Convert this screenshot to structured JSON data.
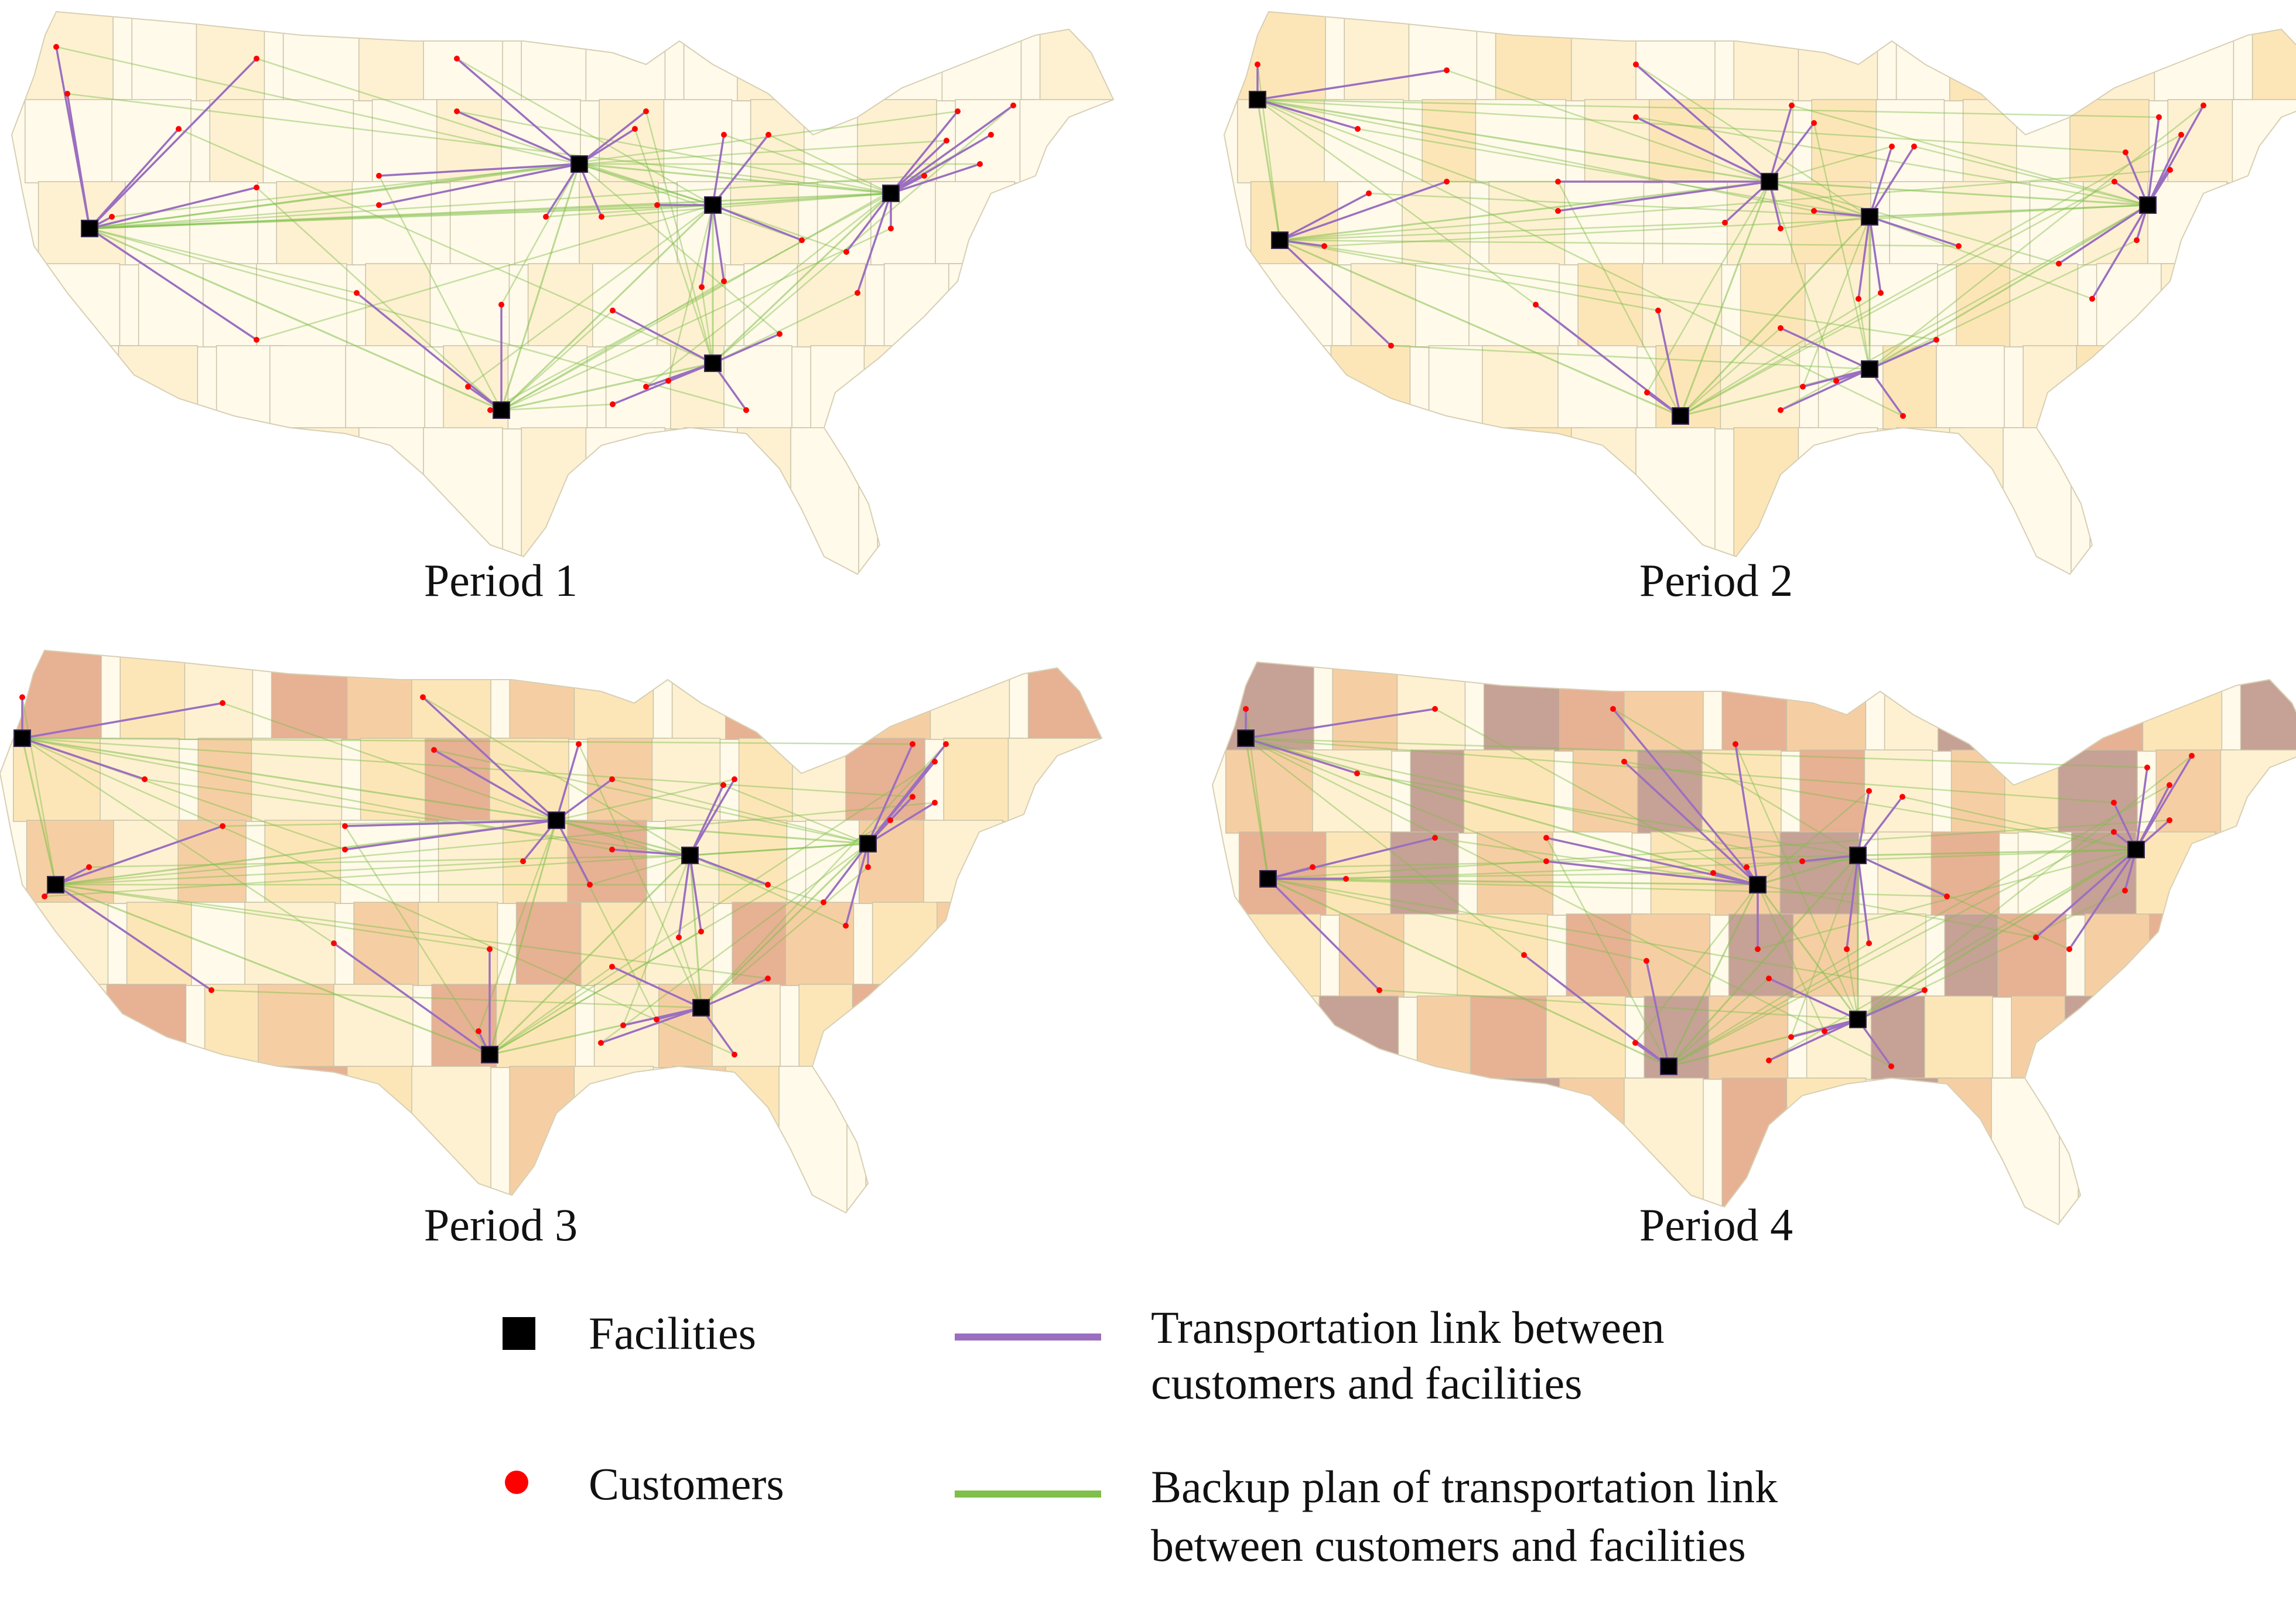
{
  "colors": {
    "transport_link": "#9b6fc0",
    "backup_link": "#7fbf4a",
    "facility": "#000000",
    "customer": "#ff0000",
    "state_border": "#c9c2a8",
    "palette": [
      "#fffaea",
      "#fdf1d2",
      "#fce6b8",
      "#f5cfa3",
      "#e7b194",
      "#c6a195"
    ]
  },
  "panels": [
    {
      "label": "Period 1",
      "state_shades": [
        1,
        0,
        1,
        0,
        1,
        0,
        0,
        0,
        0,
        1,
        0,
        0,
        0,
        1,
        0,
        0,
        1,
        0,
        0,
        1,
        0,
        1,
        0,
        1,
        0,
        1,
        0,
        0,
        1,
        0,
        0,
        1,
        0,
        0,
        0,
        1,
        0,
        1,
        0,
        0,
        0,
        1,
        0,
        0,
        0,
        0,
        1,
        0
      ],
      "facilities": [
        [
          0.07,
          0.38
        ],
        [
          0.51,
          0.27
        ],
        [
          0.63,
          0.34
        ],
        [
          0.79,
          0.32
        ],
        [
          0.63,
          0.61
        ],
        [
          0.44,
          0.69
        ]
      ],
      "assignments": [
        [
          [
            0.04,
            0.07
          ],
          [
            0.22,
            0.09
          ],
          [
            0.05,
            0.15
          ],
          [
            0.15,
            0.21
          ],
          [
            0.22,
            0.31
          ],
          [
            0.09,
            0.36
          ],
          [
            0.22,
            0.57
          ]
        ],
        [
          [
            0.4,
            0.09
          ],
          [
            0.4,
            0.18
          ],
          [
            0.57,
            0.18
          ],
          [
            0.33,
            0.29
          ],
          [
            0.33,
            0.34
          ],
          [
            0.48,
            0.36
          ],
          [
            0.53,
            0.36
          ],
          [
            0.56,
            0.21
          ]
        ],
        [
          [
            0.68,
            0.22
          ],
          [
            0.62,
            0.48
          ],
          [
            0.64,
            0.47
          ],
          [
            0.58,
            0.34
          ],
          [
            0.71,
            0.4
          ],
          [
            0.64,
            0.22
          ]
        ],
        [
          [
            0.9,
            0.17
          ],
          [
            0.88,
            0.22
          ],
          [
            0.85,
            0.18
          ],
          [
            0.87,
            0.27
          ],
          [
            0.75,
            0.42
          ],
          [
            0.76,
            0.49
          ],
          [
            0.79,
            0.38
          ],
          [
            0.82,
            0.29
          ],
          [
            0.84,
            0.23
          ]
        ],
        [
          [
            0.54,
            0.52
          ],
          [
            0.66,
            0.69
          ],
          [
            0.69,
            0.56
          ],
          [
            0.59,
            0.64
          ],
          [
            0.57,
            0.65
          ],
          [
            0.54,
            0.68
          ]
        ],
        [
          [
            0.31,
            0.49
          ],
          [
            0.44,
            0.51
          ],
          [
            0.41,
            0.65
          ],
          [
            0.43,
            0.69
          ]
        ]
      ],
      "backup_pairs": [
        [
          0,
          1
        ],
        [
          0,
          2
        ],
        [
          0,
          3
        ],
        [
          0,
          5
        ],
        [
          1,
          2
        ],
        [
          1,
          3
        ],
        [
          1,
          5
        ],
        [
          2,
          3
        ],
        [
          2,
          4
        ],
        [
          2,
          5
        ],
        [
          3,
          4
        ],
        [
          4,
          5
        ]
      ]
    },
    {
      "label": "Period 2",
      "state_shades": [
        2,
        1,
        0,
        2,
        1,
        0,
        1,
        1,
        0,
        2,
        0,
        1,
        0,
        2,
        1,
        0,
        2,
        0,
        1,
        2,
        1,
        2,
        0,
        1,
        0,
        2,
        1,
        0,
        2,
        0,
        1,
        1,
        0,
        0,
        1,
        2,
        0,
        1,
        0,
        1,
        0,
        2,
        0,
        1,
        0,
        0,
        2,
        1
      ],
      "facilities": [
        [
          0.03,
          0.16
        ],
        [
          0.05,
          0.4
        ],
        [
          0.49,
          0.3
        ],
        [
          0.58,
          0.36
        ],
        [
          0.83,
          0.34
        ],
        [
          0.58,
          0.62
        ],
        [
          0.41,
          0.7
        ]
      ],
      "assignments": [
        [
          [
            0.03,
            0.1
          ],
          [
            0.2,
            0.11
          ],
          [
            0.12,
            0.21
          ]
        ],
        [
          [
            0.2,
            0.3
          ],
          [
            0.13,
            0.32
          ],
          [
            0.09,
            0.41
          ],
          [
            0.15,
            0.58
          ]
        ],
        [
          [
            0.37,
            0.1
          ],
          [
            0.37,
            0.19
          ],
          [
            0.53,
            0.2
          ],
          [
            0.3,
            0.3
          ],
          [
            0.3,
            0.35
          ],
          [
            0.45,
            0.37
          ],
          [
            0.5,
            0.38
          ],
          [
            0.51,
            0.17
          ]
        ],
        [
          [
            0.62,
            0.24
          ],
          [
            0.57,
            0.5
          ],
          [
            0.59,
            0.49
          ],
          [
            0.53,
            0.35
          ],
          [
            0.66,
            0.41
          ],
          [
            0.6,
            0.24
          ]
        ],
        [
          [
            0.88,
            0.17
          ],
          [
            0.86,
            0.22
          ],
          [
            0.84,
            0.19
          ],
          [
            0.85,
            0.28
          ],
          [
            0.75,
            0.44
          ],
          [
            0.78,
            0.5
          ],
          [
            0.82,
            0.4
          ],
          [
            0.8,
            0.3
          ],
          [
            0.81,
            0.25
          ]
        ],
        [
          [
            0.5,
            0.55
          ],
          [
            0.61,
            0.7
          ],
          [
            0.64,
            0.57
          ],
          [
            0.55,
            0.64
          ],
          [
            0.52,
            0.65
          ],
          [
            0.5,
            0.69
          ]
        ],
        [
          [
            0.28,
            0.51
          ],
          [
            0.39,
            0.52
          ],
          [
            0.38,
            0.66
          ]
        ]
      ],
      "backup_pairs": [
        [
          0,
          1
        ],
        [
          0,
          2
        ],
        [
          1,
          2
        ],
        [
          1,
          6
        ],
        [
          2,
          3
        ],
        [
          2,
          4
        ],
        [
          2,
          6
        ],
        [
          3,
          4
        ],
        [
          3,
          5
        ],
        [
          3,
          6
        ],
        [
          4,
          5
        ],
        [
          5,
          6
        ]
      ]
    },
    {
      "label": "Period 3",
      "state_shades": [
        4,
        2,
        1,
        4,
        3,
        2,
        3,
        2,
        1,
        4,
        2,
        3,
        1,
        4,
        2,
        1,
        3,
        1,
        2,
        4,
        2,
        3,
        1,
        2,
        1,
        4,
        2,
        1,
        3,
        1,
        3,
        2,
        0,
        1,
        2,
        4,
        1,
        2,
        0,
        3,
        1,
        4,
        1,
        2,
        0,
        1,
        3,
        2
      ],
      "facilities": [
        [
          0.02,
          0.16
        ],
        [
          0.05,
          0.41
        ],
        [
          0.5,
          0.3
        ],
        [
          0.62,
          0.36
        ],
        [
          0.78,
          0.34
        ],
        [
          0.63,
          0.62
        ],
        [
          0.44,
          0.7
        ]
      ],
      "assignments": [
        [
          [
            0.02,
            0.09
          ],
          [
            0.2,
            0.1
          ],
          [
            0.13,
            0.23
          ]
        ],
        [
          [
            0.2,
            0.31
          ],
          [
            0.08,
            0.38
          ],
          [
            0.04,
            0.43
          ],
          [
            0.19,
            0.59
          ]
        ],
        [
          [
            0.38,
            0.09
          ],
          [
            0.39,
            0.18
          ],
          [
            0.52,
            0.17
          ],
          [
            0.31,
            0.31
          ],
          [
            0.31,
            0.35
          ],
          [
            0.47,
            0.37
          ],
          [
            0.53,
            0.41
          ],
          [
            0.55,
            0.23
          ]
        ],
        [
          [
            0.65,
            0.24
          ],
          [
            0.61,
            0.5
          ],
          [
            0.63,
            0.49
          ],
          [
            0.55,
            0.35
          ],
          [
            0.69,
            0.41
          ],
          [
            0.66,
            0.23
          ]
        ],
        [
          [
            0.85,
            0.17
          ],
          [
            0.84,
            0.2
          ],
          [
            0.82,
            0.17
          ],
          [
            0.84,
            0.27
          ],
          [
            0.74,
            0.44
          ],
          [
            0.76,
            0.48
          ],
          [
            0.78,
            0.38
          ],
          [
            0.8,
            0.3
          ],
          [
            0.82,
            0.26
          ]
        ],
        [
          [
            0.55,
            0.55
          ],
          [
            0.66,
            0.7
          ],
          [
            0.69,
            0.57
          ],
          [
            0.59,
            0.64
          ],
          [
            0.56,
            0.65
          ],
          [
            0.54,
            0.68
          ]
        ],
        [
          [
            0.3,
            0.51
          ],
          [
            0.44,
            0.52
          ],
          [
            0.43,
            0.66
          ]
        ]
      ],
      "backup_pairs": [
        [
          0,
          1
        ],
        [
          0,
          2
        ],
        [
          1,
          2
        ],
        [
          1,
          6
        ],
        [
          2,
          3
        ],
        [
          2,
          4
        ],
        [
          2,
          6
        ],
        [
          3,
          4
        ],
        [
          3,
          5
        ],
        [
          3,
          6
        ],
        [
          4,
          5
        ],
        [
          5,
          6
        ]
      ]
    },
    {
      "label": "Period 4",
      "state_shades": [
        5,
        3,
        1,
        5,
        4,
        3,
        4,
        3,
        1,
        5,
        3,
        4,
        2,
        5,
        3,
        1,
        5,
        2,
        3,
        5,
        2,
        4,
        1,
        3,
        2,
        5,
        3,
        1,
        4,
        2,
        5,
        3,
        0,
        2,
        3,
        5,
        1,
        4,
        0,
        5,
        2,
        5,
        2,
        3,
        1,
        2,
        4,
        3
      ],
      "facilities": [
        [
          0.03,
          0.14
        ],
        [
          0.05,
          0.38
        ],
        [
          0.49,
          0.39
        ],
        [
          0.58,
          0.34
        ],
        [
          0.83,
          0.33
        ],
        [
          0.58,
          0.62
        ],
        [
          0.41,
          0.7
        ]
      ],
      "assignments": [
        [
          [
            0.03,
            0.09
          ],
          [
            0.2,
            0.09
          ],
          [
            0.13,
            0.2
          ]
        ],
        [
          [
            0.2,
            0.31
          ],
          [
            0.09,
            0.36
          ],
          [
            0.12,
            0.38
          ],
          [
            0.15,
            0.57
          ]
        ],
        [
          [
            0.36,
            0.09
          ],
          [
            0.37,
            0.18
          ],
          [
            0.47,
            0.15
          ],
          [
            0.3,
            0.31
          ],
          [
            0.3,
            0.35
          ],
          [
            0.45,
            0.37
          ],
          [
            0.48,
            0.36
          ],
          [
            0.49,
            0.5
          ]
        ],
        [
          [
            0.62,
            0.24
          ],
          [
            0.57,
            0.5
          ],
          [
            0.59,
            0.49
          ],
          [
            0.53,
            0.35
          ],
          [
            0.66,
            0.41
          ],
          [
            0.59,
            0.23
          ]
        ],
        [
          [
            0.88,
            0.17
          ],
          [
            0.86,
            0.22
          ],
          [
            0.84,
            0.19
          ],
          [
            0.86,
            0.28
          ],
          [
            0.74,
            0.48
          ],
          [
            0.77,
            0.5
          ],
          [
            0.82,
            0.4
          ],
          [
            0.81,
            0.3
          ],
          [
            0.81,
            0.25
          ]
        ],
        [
          [
            0.5,
            0.55
          ],
          [
            0.61,
            0.7
          ],
          [
            0.64,
            0.57
          ],
          [
            0.55,
            0.64
          ],
          [
            0.52,
            0.65
          ],
          [
            0.5,
            0.69
          ]
        ],
        [
          [
            0.28,
            0.51
          ],
          [
            0.39,
            0.52
          ],
          [
            0.38,
            0.66
          ]
        ]
      ],
      "backup_pairs": [
        [
          0,
          1
        ],
        [
          0,
          2
        ],
        [
          1,
          2
        ],
        [
          1,
          6
        ],
        [
          2,
          3
        ],
        [
          2,
          6
        ],
        [
          3,
          4
        ],
        [
          3,
          5
        ],
        [
          3,
          6
        ],
        [
          4,
          5
        ],
        [
          5,
          6
        ],
        [
          2,
          5
        ]
      ]
    }
  ],
  "legend": {
    "facilities": "Facilities",
    "customers": "Customers",
    "transport_line1": "Transportation link between",
    "transport_line2": "customers and facilities",
    "backup_line1": "Backup plan of transportation link",
    "backup_line2": "between customers and facilities"
  }
}
